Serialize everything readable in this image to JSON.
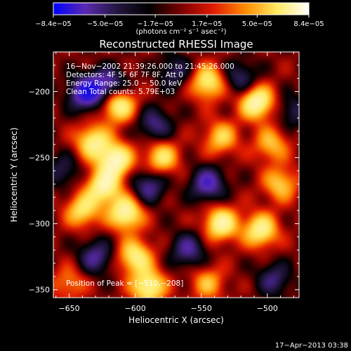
{
  "chart_data": {
    "type": "heatmap",
    "title": "Reconstructed RHESSI Image",
    "xlabel": "Heliocentric X (arcsec)",
    "ylabel": "Heliocentric Y (arcsec)",
    "x_range": [
      -662,
      -476
    ],
    "y_range": [
      -356,
      -170
    ],
    "x_ticks": [
      -650,
      -600,
      -550,
      -500
    ],
    "x_tick_labels": [
      "−650",
      "−600",
      "−550",
      "−500"
    ],
    "y_ticks": [
      -200,
      -250,
      -300,
      -350
    ],
    "y_tick_labels": [
      "−200",
      "−250",
      "−300",
      "−350"
    ],
    "colorbar": {
      "min": -8.4e-05,
      "max": 8.4e-05,
      "tick_labels": [
        "−8.4e−05",
        "−5.0e−05",
        "−1.7e−05",
        "1.7e−05",
        "5.0e−05",
        "8.4e−05"
      ],
      "tick_values": [
        -8.4e-05,
        -5e-05,
        -1.7e-05,
        1.7e-05,
        5e-05,
        8.4e-05
      ],
      "unit_label": "(photons cm⁻² s⁻¹ asec⁻²)",
      "colormap": [
        "#0000ff",
        "#5a2ab0",
        "#231640",
        "#000000",
        "#7a0000",
        "#e01a00",
        "#ff8a00",
        "#ffea60",
        "#ffffff"
      ]
    },
    "peak": [
      -510,
      -208
    ],
    "blobs": [
      {
        "x": -637,
        "y": -201,
        "v": -1.0
      },
      {
        "x": -620,
        "y": -195,
        "v": -0.7
      },
      {
        "x": -613,
        "y": -210,
        "v": 0.9
      },
      {
        "x": -632,
        "y": -238,
        "v": 0.8
      },
      {
        "x": -615,
        "y": -252,
        "v": 1.0
      },
      {
        "x": -624,
        "y": -272,
        "v": 0.9
      },
      {
        "x": -640,
        "y": -290,
        "v": 0.7
      },
      {
        "x": -607,
        "y": -292,
        "v": 0.95
      },
      {
        "x": -590,
        "y": -272,
        "v": -0.6
      },
      {
        "x": -580,
        "y": -250,
        "v": 0.7
      },
      {
        "x": -545,
        "y": -193,
        "v": 0.8
      },
      {
        "x": -535,
        "y": -235,
        "v": 0.6
      },
      {
        "x": -520,
        "y": -190,
        "v": -0.5
      },
      {
        "x": -508,
        "y": -208,
        "v": 1.0
      },
      {
        "x": -497,
        "y": -240,
        "v": 0.55
      },
      {
        "x": -545,
        "y": -270,
        "v": -0.75
      },
      {
        "x": -535,
        "y": -300,
        "v": 0.9
      },
      {
        "x": -505,
        "y": -305,
        "v": 0.85
      },
      {
        "x": -490,
        "y": -270,
        "v": 0.6
      },
      {
        "x": -560,
        "y": -320,
        "v": -0.6
      },
      {
        "x": -600,
        "y": -325,
        "v": 0.8
      },
      {
        "x": -630,
        "y": -325,
        "v": -0.6
      },
      {
        "x": -590,
        "y": -348,
        "v": 0.9
      },
      {
        "x": -545,
        "y": -345,
        "v": 0.5
      },
      {
        "x": -495,
        "y": -342,
        "v": -0.5
      },
      {
        "x": -655,
        "y": -260,
        "v": -0.4
      },
      {
        "x": -585,
        "y": -225,
        "v": -0.55
      },
      {
        "x": -570,
        "y": -185,
        "v": -0.45
      },
      {
        "x": -650,
        "y": -345,
        "v": 0.4
      },
      {
        "x": -480,
        "y": -215,
        "v": -0.4
      }
    ],
    "info_lines": [
      "16−Nov−2002 21:39:26.000 to 21:45:26.000",
      "Detectors: 4F 5F 6F 7F 8F, Att 0",
      "Energy Range: 25.0 − 50.0 keV",
      "Clean     Total counts: 5.79E+03"
    ],
    "peak_label": "Position of Peak = [−510,−208]"
  },
  "footer": {
    "timestamp": "17−Apr−2013 03:38"
  }
}
